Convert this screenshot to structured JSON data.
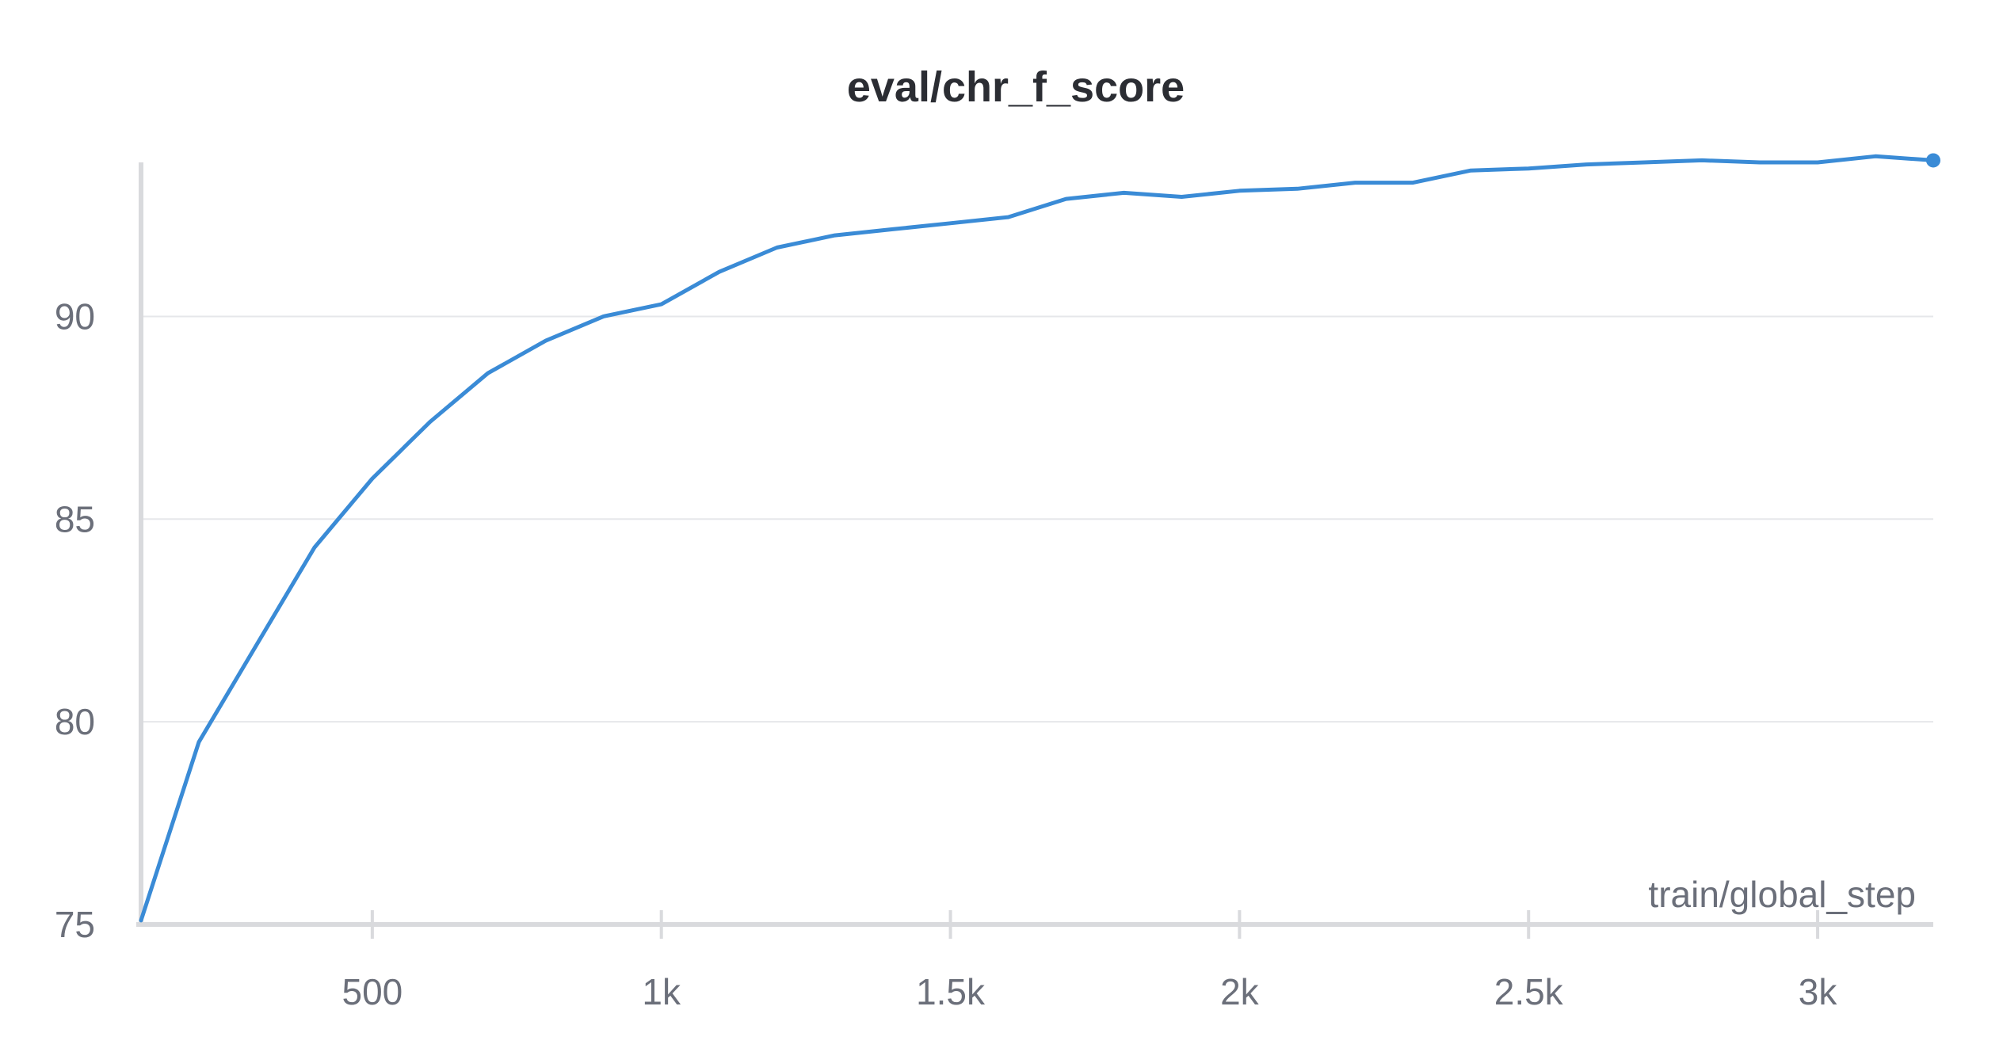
{
  "chart_data": {
    "type": "line",
    "title": "eval/chr_f_score",
    "xlabel": "train/global_step",
    "ylabel": "",
    "xlim": [
      100,
      3200
    ],
    "ylim": [
      75,
      93.8
    ],
    "x_ticks": [
      500,
      1000,
      1500,
      2000,
      2500,
      3000
    ],
    "x_tick_labels": [
      "500",
      "1k",
      "1.5k",
      "2k",
      "2.5k",
      "3k"
    ],
    "y_ticks": [
      75,
      80,
      85,
      90
    ],
    "y_tick_labels": [
      "75",
      "80",
      "85",
      "90"
    ],
    "grid": true,
    "legend": "none",
    "series": [
      {
        "color": "#3a8bd6",
        "x": [
          100,
          200,
          300,
          400,
          500,
          600,
          700,
          800,
          900,
          1000,
          1100,
          1200,
          1300,
          1400,
          1500,
          1600,
          1700,
          1800,
          1900,
          2000,
          2100,
          2200,
          2300,
          2400,
          2500,
          2600,
          2700,
          2800,
          2900,
          3000,
          3100,
          3200
        ],
        "y": [
          75.1,
          79.5,
          81.9,
          84.3,
          86.0,
          87.4,
          88.6,
          89.4,
          90.0,
          90.3,
          91.1,
          91.7,
          92.0,
          92.15,
          92.3,
          92.45,
          92.9,
          93.05,
          92.95,
          93.1,
          93.15,
          93.3,
          93.3,
          93.6,
          93.65,
          93.75,
          93.8,
          93.85,
          93.8,
          93.8,
          93.95,
          93.85
        ]
      }
    ],
    "colors": {
      "line": "#3a8bd6",
      "grid": "#e6e7ea",
      "axis": "#d9dadd",
      "text": "#6b6f7a",
      "title": "#2b2d33"
    }
  }
}
